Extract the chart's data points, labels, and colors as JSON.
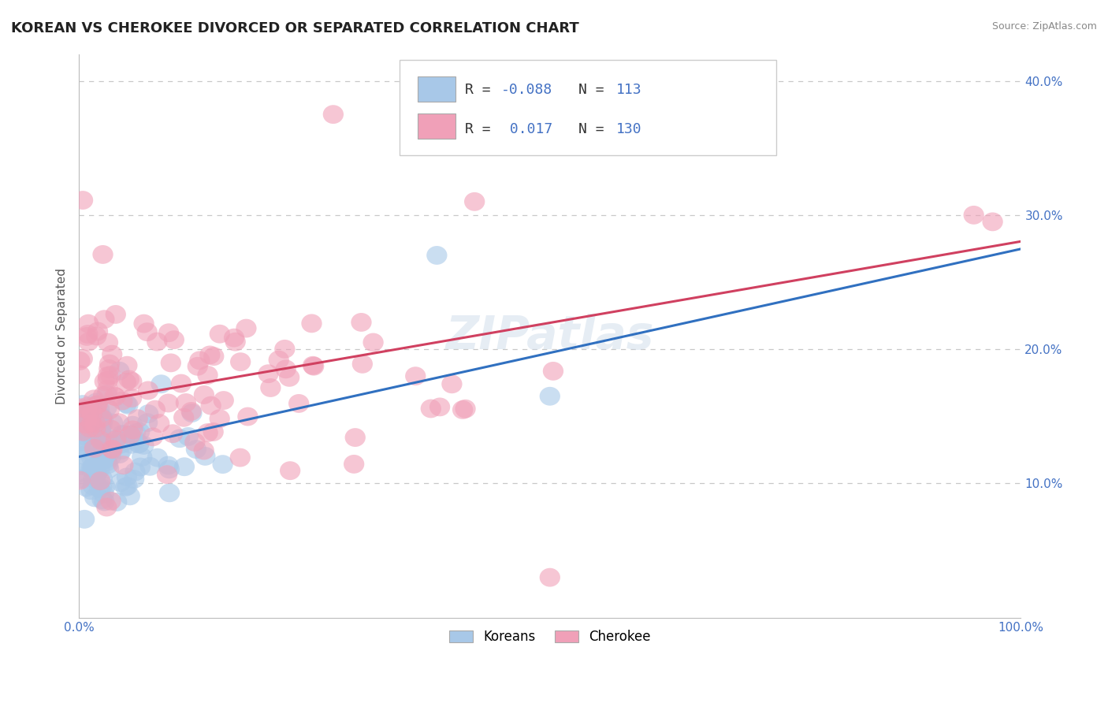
{
  "title": "KOREAN VS CHEROKEE DIVORCED OR SEPARATED CORRELATION CHART",
  "source": "Source: ZipAtlas.com",
  "ylabel": "Divorced or Separated",
  "xlim": [
    0,
    1.0
  ],
  "ylim": [
    0,
    0.42
  ],
  "yticks": [
    0.1,
    0.2,
    0.3,
    0.4
  ],
  "ytick_labels": [
    "10.0%",
    "20.0%",
    "30.0%",
    "40.0%"
  ],
  "xticks": [
    0.0,
    1.0
  ],
  "xtick_labels": [
    "0.0%",
    "100.0%"
  ],
  "korean_R": -0.088,
  "korean_N": 113,
  "cherokee_R": 0.017,
  "cherokee_N": 130,
  "korean_color": "#a8c8e8",
  "cherokee_color": "#f0a0b8",
  "korean_line_color": "#3070c0",
  "cherokee_line_color": "#d04060",
  "tick_color": "#4472c4",
  "background_color": "#ffffff",
  "grid_color": "#cccccc",
  "title_fontsize": 13,
  "legend_fontsize": 13,
  "axis_label_fontsize": 11,
  "tick_fontsize": 11
}
